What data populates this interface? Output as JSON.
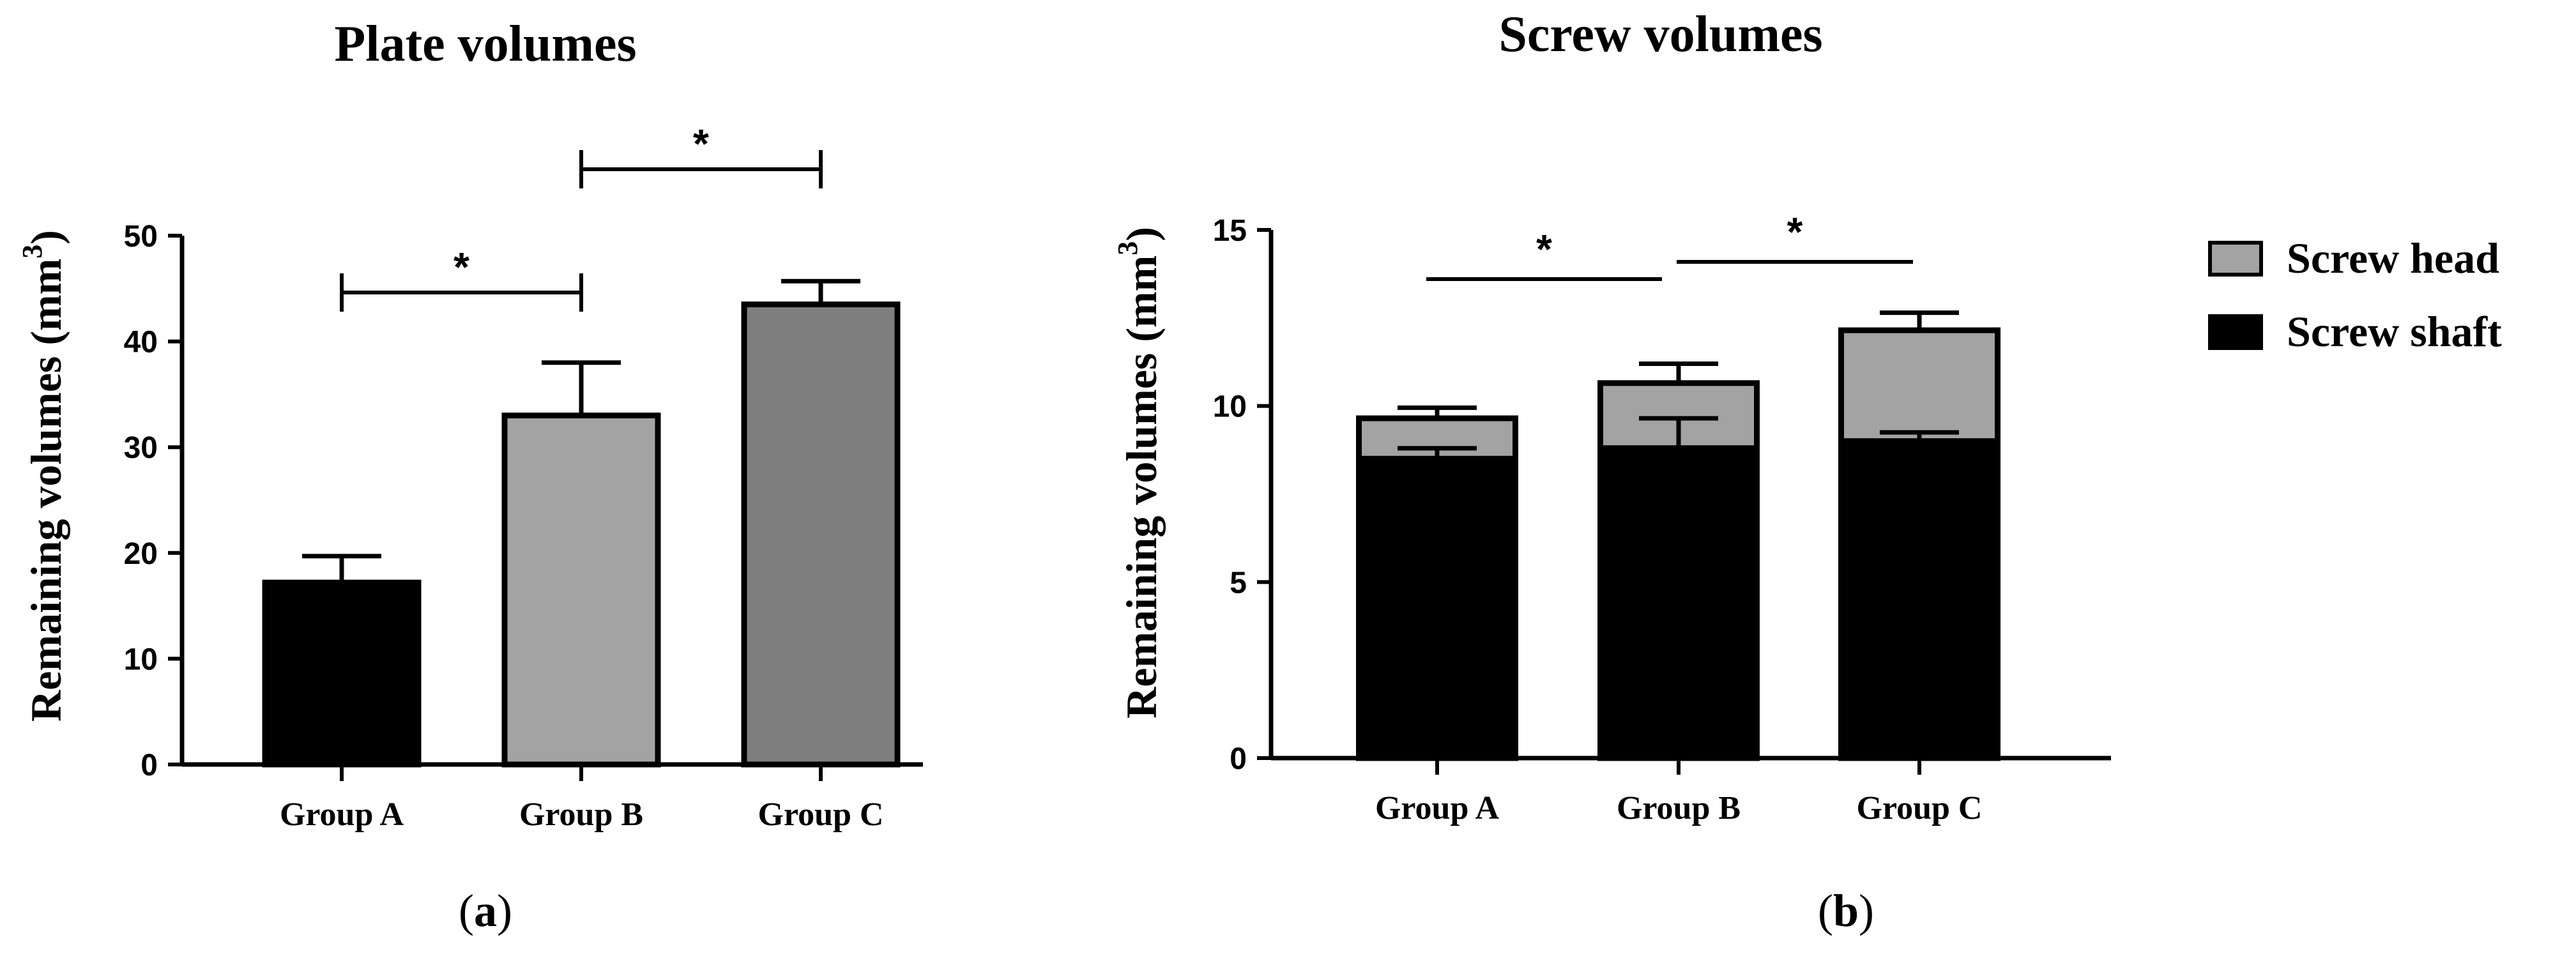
{
  "chart_data": [
    {
      "type": "bar",
      "panel_label": "a",
      "title": "Plate volumes",
      "xlabel": "",
      "ylabel": "Remaining volumes (mm",
      "ylabel_sup": "3",
      "ylabel_tail": ")",
      "ylim": [
        0,
        50
      ],
      "yticks": [
        0,
        10,
        20,
        30,
        40,
        50
      ],
      "categories": [
        "Group A",
        "Group B",
        "Group C"
      ],
      "values": [
        17.2,
        33.0,
        43.5
      ],
      "errors": [
        2.5,
        5.0,
        2.2
      ],
      "colors": [
        "#000000",
        "#a3a3a3",
        "#7f7f7f"
      ],
      "significance": [
        {
          "from": 0,
          "to": 1,
          "label": "*"
        },
        {
          "from": 1,
          "to": 2,
          "label": "*"
        }
      ],
      "grid": false
    },
    {
      "type": "stacked-bar",
      "panel_label": "b",
      "title": "Screw volumes",
      "xlabel": "",
      "ylabel": "Remaining volumes (mm",
      "ylabel_sup": "3",
      "ylabel_tail": ")",
      "ylim": [
        0,
        15
      ],
      "yticks": [
        0,
        5,
        10,
        15
      ],
      "categories": [
        "Group A",
        "Group B",
        "Group C"
      ],
      "series": [
        {
          "name": "Screw shaft",
          "color": "#000000",
          "values": [
            8.5,
            8.8,
            9.0
          ],
          "errors": [
            0.3,
            0.85,
            0.25
          ]
        },
        {
          "name": "Screw head",
          "color": "#a3a3a3",
          "values": [
            1.15,
            1.85,
            3.15
          ],
          "errors": [
            0.3,
            0.55,
            0.5
          ]
        }
      ],
      "legend_order": [
        "Screw head",
        "Screw shaft"
      ],
      "legend_position": "right",
      "significance": [
        {
          "from": 0,
          "to": 1,
          "label": "*"
        },
        {
          "from": 1,
          "to": 2,
          "label": "*"
        }
      ],
      "grid": false
    }
  ]
}
